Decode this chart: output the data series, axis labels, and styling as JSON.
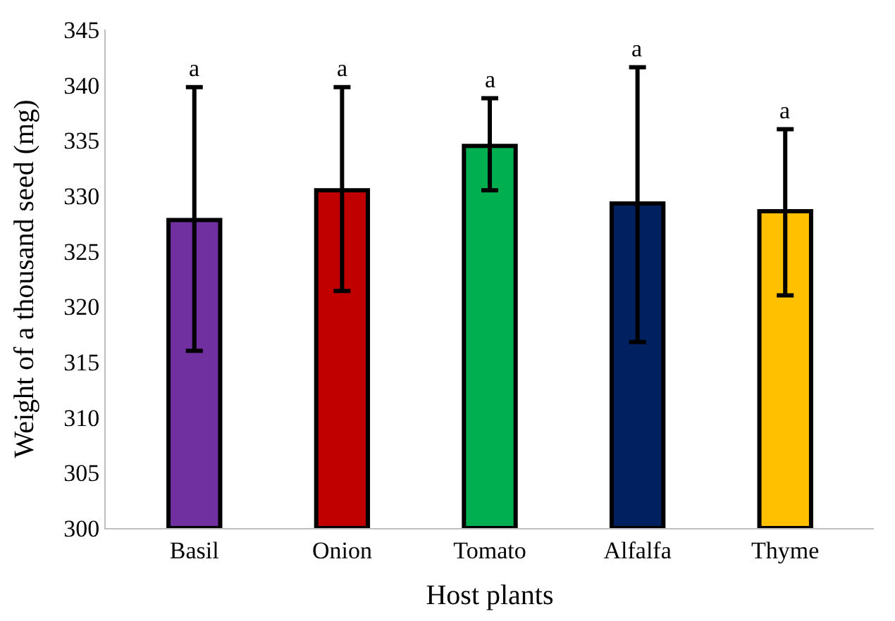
{
  "chart_data": {
    "type": "bar",
    "xlabel": "Host plants",
    "ylabel": "Weight of a thousand seed (mg)",
    "categories": [
      "Basil",
      "Onion",
      "Tomato",
      "Alfalfa",
      "Thyme"
    ],
    "values": [
      327.8,
      330.5,
      334.5,
      329.3,
      328.6
    ],
    "colors": [
      "#7030a0",
      "#c00000",
      "#00b050",
      "#002060",
      "#ffc000"
    ],
    "errors": [
      [
        316,
        339.8
      ],
      [
        321.4,
        339.8
      ],
      [
        330.5,
        338.8
      ],
      [
        316.8,
        341.6
      ],
      [
        321,
        336
      ]
    ],
    "ylim": [
      300,
      345
    ],
    "yticks": [
      300,
      305,
      310,
      315,
      320,
      325,
      330,
      335,
      340,
      345
    ],
    "annotations": [
      "a",
      "a",
      "a",
      "a",
      "a"
    ]
  }
}
